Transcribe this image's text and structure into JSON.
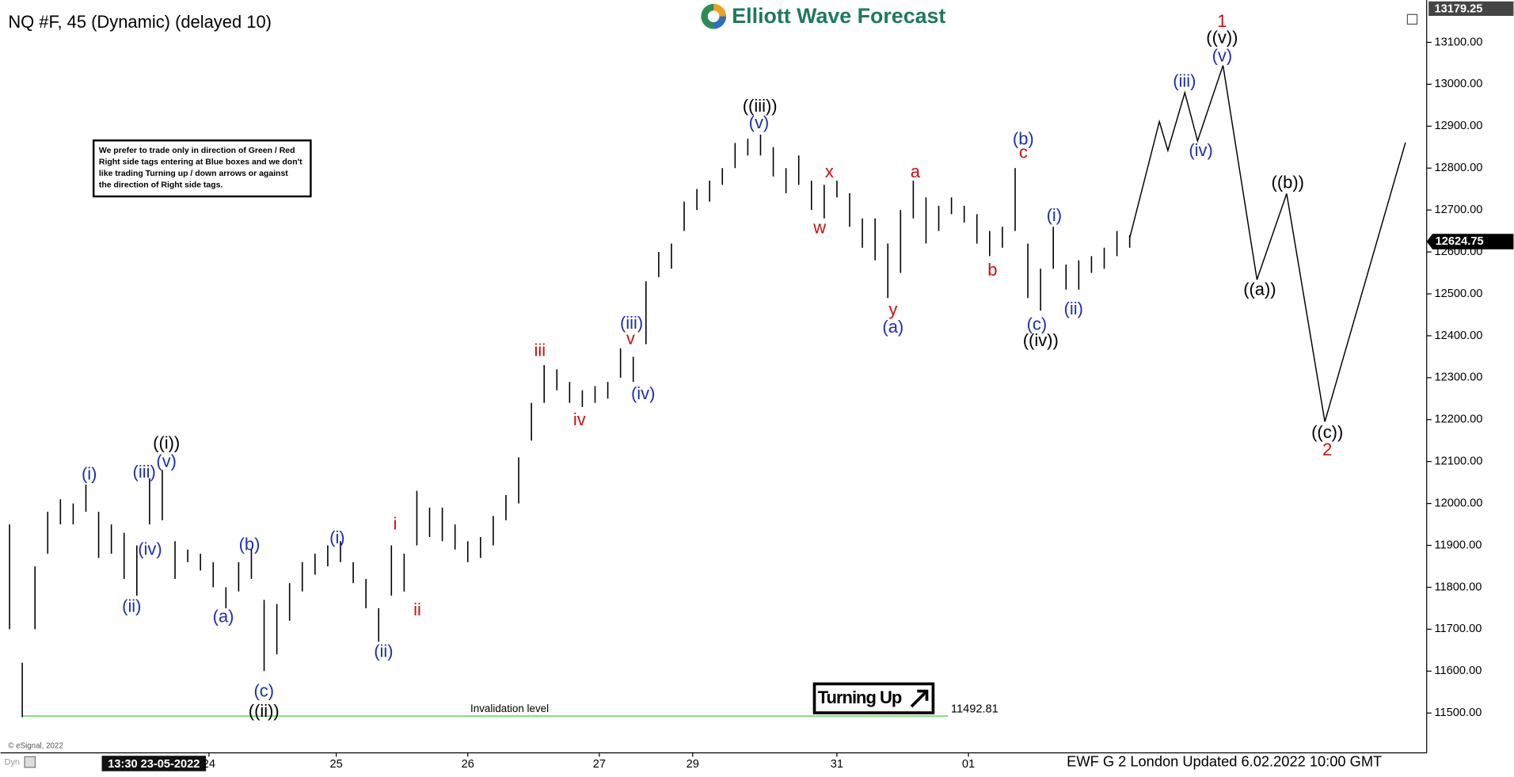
{
  "chart_data": {
    "type": "ohlc",
    "title": "NQ #F, 45 (Dynamic) (delayed 10)",
    "logo": "Elliott Wave Forecast",
    "note": [
      "We prefer to trade only in direction of Green / Red",
      "Right side tags entering at Blue boxes and we don't",
      "like trading Turning up / down arrows or against",
      "the direction of Right side tags."
    ],
    "signal": "Turning Up",
    "invalidation_label": "Invalidation level",
    "invalidation": 11492.81,
    "high_marker": 13179.25,
    "last_price": 12624.75,
    "copyright": "© eSignal, 2022",
    "cursor_time": "13:30 23-05-2022",
    "footer": "EWF G 2 London Updated 6.02.2022 10:00 GMT",
    "bar_color": "#000000",
    "xlim": [
      0,
      335
    ],
    "ylim": [
      11405,
      13201
    ],
    "xticks": [
      {
        "value": 48,
        "label": "24"
      },
      {
        "value": 78,
        "label": "25"
      },
      {
        "value": 109,
        "label": "26"
      },
      {
        "value": 140,
        "label": "27"
      },
      {
        "value": 162,
        "label": "29"
      },
      {
        "value": 196,
        "label": "31"
      },
      {
        "value": 227,
        "label": "01"
      }
    ],
    "yticks": [
      {
        "value": 11500,
        "label": "11500.00"
      },
      {
        "value": 11600,
        "label": "11600.00"
      },
      {
        "value": 11700,
        "label": "11700.00"
      },
      {
        "value": 11800,
        "label": "11800.00"
      },
      {
        "value": 11900,
        "label": "11900.00"
      },
      {
        "value": 12000,
        "label": "12000.00"
      },
      {
        "value": 12100,
        "label": "12100.00"
      },
      {
        "value": 12200,
        "label": "12200.00"
      },
      {
        "value": 12300,
        "label": "12300.00"
      },
      {
        "value": 12400,
        "label": "12400.00"
      },
      {
        "value": 12500,
        "label": "12500.00"
      },
      {
        "value": 12600,
        "label": "12600.00"
      },
      {
        "value": 12700,
        "label": "12700.00"
      },
      {
        "value": 12800,
        "label": "12800.00"
      },
      {
        "value": 12900,
        "label": "12900.00"
      },
      {
        "value": 13000,
        "label": "13000.00"
      },
      {
        "value": 13100,
        "label": "13100.00"
      }
    ],
    "x": [
      1,
      4,
      7,
      10,
      13,
      16,
      19,
      22,
      25,
      28,
      31,
      34,
      37,
      40,
      43,
      46,
      49,
      52,
      55,
      58,
      61,
      64,
      67,
      70,
      73,
      76,
      79,
      82,
      85,
      88,
      91,
      94,
      97,
      100,
      103,
      106,
      109,
      112,
      115,
      118,
      121,
      124,
      127,
      130,
      133,
      136,
      139,
      142,
      145,
      148,
      151,
      154,
      157,
      160,
      163,
      166,
      169,
      172,
      175,
      178,
      181,
      184,
      187,
      190,
      193,
      196,
      199,
      202,
      205,
      208,
      211,
      214,
      217,
      220,
      223,
      226,
      229,
      232,
      235,
      238,
      241,
      244,
      247,
      250,
      253,
      256,
      259,
      262,
      265
    ],
    "high": [
      11950,
      11620,
      11850,
      11980,
      12010,
      12000,
      12045,
      11980,
      11950,
      11930,
      11900,
      12060,
      12080,
      11910,
      11890,
      11880,
      11860,
      11800,
      11860,
      11890,
      11770,
      11760,
      11810,
      11860,
      11880,
      11900,
      11910,
      11860,
      11820,
      11750,
      11900,
      11880,
      12030,
      11990,
      11990,
      11950,
      11910,
      11920,
      11970,
      12020,
      12110,
      12240,
      12330,
      12320,
      12290,
      12270,
      12280,
      12290,
      12370,
      12350,
      12530,
      12600,
      12620,
      12720,
      12750,
      12770,
      12800,
      12860,
      12870,
      12880,
      12850,
      12800,
      12830,
      12770,
      12760,
      12770,
      12740,
      12680,
      12680,
      12620,
      12700,
      12770,
      12730,
      12710,
      12730,
      12710,
      12690,
      12650,
      12660,
      12800,
      12620,
      12560,
      12660,
      12570,
      12580,
      12590,
      12610,
      12650,
      12640
    ],
    "low": [
      11700,
      11490,
      11700,
      11880,
      11950,
      11950,
      11980,
      11870,
      11880,
      11820,
      11780,
      11950,
      11960,
      11820,
      11860,
      11840,
      11800,
      11750,
      11790,
      11820,
      11600,
      11640,
      11720,
      11790,
      11830,
      11850,
      11860,
      11810,
      11750,
      11670,
      11780,
      11790,
      11900,
      11920,
      11910,
      11890,
      11860,
      11870,
      11900,
      11960,
      12000,
      12150,
      12240,
      12270,
      12240,
      12230,
      12240,
      12250,
      12300,
      12290,
      12380,
      12540,
      12560,
      12650,
      12700,
      12720,
      12760,
      12800,
      12830,
      12830,
      12780,
      12740,
      12760,
      12700,
      12680,
      12730,
      12660,
      12610,
      12580,
      12490,
      12550,
      12680,
      12620,
      12650,
      12690,
      12670,
      12620,
      12590,
      12610,
      12650,
      12490,
      12460,
      12560,
      12510,
      12510,
      12550,
      12560,
      12590,
      12610
    ],
    "projection": {
      "color": "#000000",
      "x": [
        265,
        272,
        274,
        278,
        281,
        287,
        295,
        302,
        311,
        330
      ],
      "values": [
        12633,
        12911,
        12842,
        12980,
        12865,
        13045,
        12534,
        12739,
        12195,
        12861
      ]
    },
    "wave_labels": [
      {
        "text": "((i))",
        "color": "#000000"
      },
      {
        "text": "(v)",
        "color": "#1c2fb0"
      },
      {
        "text": "(iii)",
        "color": "#1c2fb0"
      },
      {
        "text": "(i)",
        "color": "#1c2fb0"
      },
      {
        "text": "(iv)",
        "color": "#1c2fb0"
      },
      {
        "text": "(ii)",
        "color": "#1c2fb0"
      },
      {
        "text": "(b)",
        "color": "#1c2fb0"
      },
      {
        "text": "(a)",
        "color": "#1c2fb0"
      },
      {
        "text": "(c)",
        "color": "#1c2fb0"
      },
      {
        "text": "((ii))",
        "color": "#000000"
      },
      {
        "text": "(i)",
        "color": "#1c2fb0"
      },
      {
        "text": "(ii)",
        "color": "#1c2fb0"
      },
      {
        "text": "i",
        "color": "#c81010"
      },
      {
        "text": "ii",
        "color": "#c81010"
      },
      {
        "text": "iii",
        "color": "#c81010"
      },
      {
        "text": "iv",
        "color": "#c81010"
      },
      {
        "text": "v",
        "color": "#c81010"
      },
      {
        "text": "(iii)",
        "color": "#1c2fb0"
      },
      {
        "text": "(iv)",
        "color": "#1c2fb0"
      },
      {
        "text": "((iii))",
        "color": "#000000"
      },
      {
        "text": "(v)",
        "color": "#1c2fb0"
      },
      {
        "text": "x",
        "color": "#c81010"
      },
      {
        "text": "w",
        "color": "#c81010"
      },
      {
        "text": "a",
        "color": "#c81010"
      },
      {
        "text": "y",
        "color": "#c81010"
      },
      {
        "text": "(a)",
        "color": "#1c2fb0"
      },
      {
        "text": "(b)",
        "color": "#1c2fb0"
      },
      {
        "text": "c",
        "color": "#c81010"
      },
      {
        "text": "b",
        "color": "#c81010"
      },
      {
        "text": "(c)",
        "color": "#1c2fb0"
      },
      {
        "text": "((iv))",
        "color": "#000000"
      },
      {
        "text": "(i)",
        "color": "#1c2fb0"
      },
      {
        "text": "(ii)",
        "color": "#1c2fb0"
      },
      {
        "text": "(iii)",
        "color": "#1c2fb0"
      },
      {
        "text": "(iv)",
        "color": "#1c2fb0"
      },
      {
        "text": "1",
        "color": "#c81010"
      },
      {
        "text": "((v))",
        "color": "#000000"
      },
      {
        "text": "(v)",
        "color": "#1c2fb0"
      },
      {
        "text": "((a))",
        "color": "#000000"
      },
      {
        "text": "((b))",
        "color": "#000000"
      },
      {
        "text": "((c))",
        "color": "#000000"
      },
      {
        "text": "2",
        "color": "#c81010"
      }
    ]
  }
}
